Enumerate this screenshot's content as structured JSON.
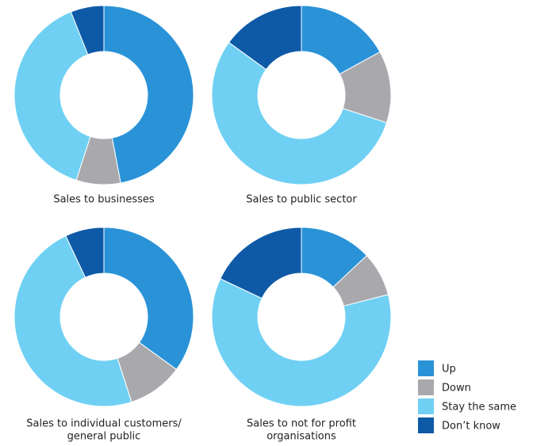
{
  "chart_data": [
    {
      "type": "pie",
      "donut": true,
      "title": [
        "Sales to businesses"
      ],
      "values": [
        47,
        8,
        39,
        6
      ]
    },
    {
      "type": "pie",
      "donut": true,
      "title": [
        "Sales to public sector"
      ],
      "values": [
        17,
        13,
        55,
        15
      ]
    },
    {
      "type": "pie",
      "donut": true,
      "title": [
        "Sales to individual customers/",
        "general public"
      ],
      "values": [
        35,
        10,
        48,
        7
      ]
    },
    {
      "type": "pie",
      "donut": true,
      "title": [
        "Sales to not for profit",
        "organisations"
      ],
      "values": [
        13,
        8,
        61,
        18
      ]
    }
  ],
  "legend": {
    "labels": [
      "Up",
      "Down",
      "Stay the same",
      "Don’t know"
    ],
    "colors": [
      "#2a93d8",
      "#a9a9ad",
      "#6fd0f3",
      "#0e5aa7"
    ]
  }
}
